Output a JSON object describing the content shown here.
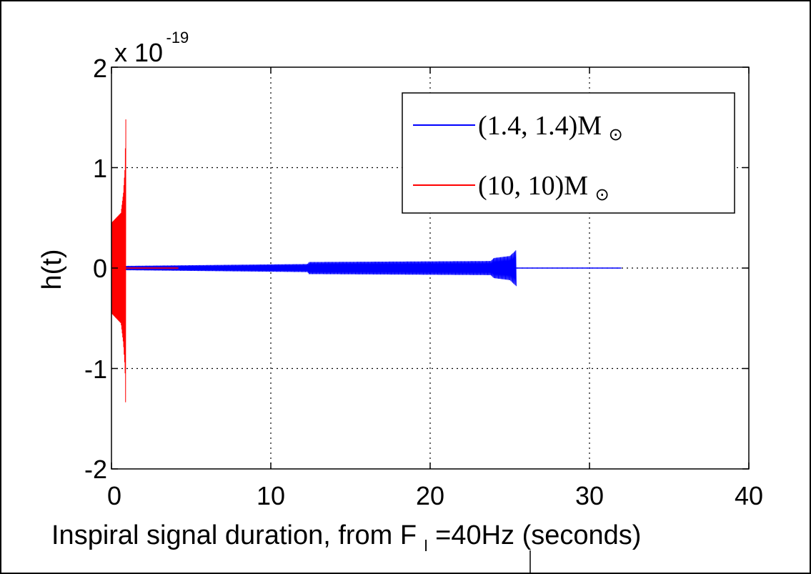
{
  "chart_data": {
    "type": "line",
    "xlabel_main": "Inspiral signal duration, from F",
    "xlabel_sub": "l",
    "xlabel_tail": "=40Hz (seconds)",
    "ylabel": "h(t)",
    "y_exponent_prefix": "x 10",
    "y_exponent_power": "-19",
    "xlim": [
      0,
      40
    ],
    "ylim": [
      -2,
      2
    ],
    "x_ticks": [
      "0",
      "10",
      "20",
      "30",
      "40"
    ],
    "y_ticks": [
      "2",
      "1",
      "0",
      "-1",
      "-2"
    ],
    "grid": true,
    "legend_position": "top-right",
    "series": [
      {
        "name": "(1.4,1.4)M",
        "name_main": "(1.4, 1.4)M",
        "name_sub": "⊙",
        "color": "#0000ff",
        "x_end": 32,
        "chirp_end": 25.4,
        "amplitude_profile": [
          {
            "x": 0.1,
            "amp": 0.02
          },
          {
            "x": 12.3,
            "amp": 0.04
          },
          {
            "x": 12.4,
            "amp": 0.06
          },
          {
            "x": 23.8,
            "amp": 0.07
          },
          {
            "x": 24.0,
            "amp": 0.1
          },
          {
            "x": 25.0,
            "amp": 0.12
          },
          {
            "x": 25.4,
            "amp": 0.18
          }
        ]
      },
      {
        "name": "(10,10)M",
        "name_main": "(10, 10)M",
        "name_sub": "⊙",
        "color": "#ff0000",
        "x_end": 4.2,
        "chirp_end": 0.9,
        "amplitude_profile": [
          {
            "x": 0.0,
            "amp": 0.45
          },
          {
            "x": 0.3,
            "amp": 0.5
          },
          {
            "x": 0.6,
            "amp": 0.55
          },
          {
            "x": 0.75,
            "amp": 0.75
          },
          {
            "x": 0.85,
            "amp": 1.0
          },
          {
            "x": 0.9,
            "amp": 1.48
          }
        ]
      }
    ]
  }
}
